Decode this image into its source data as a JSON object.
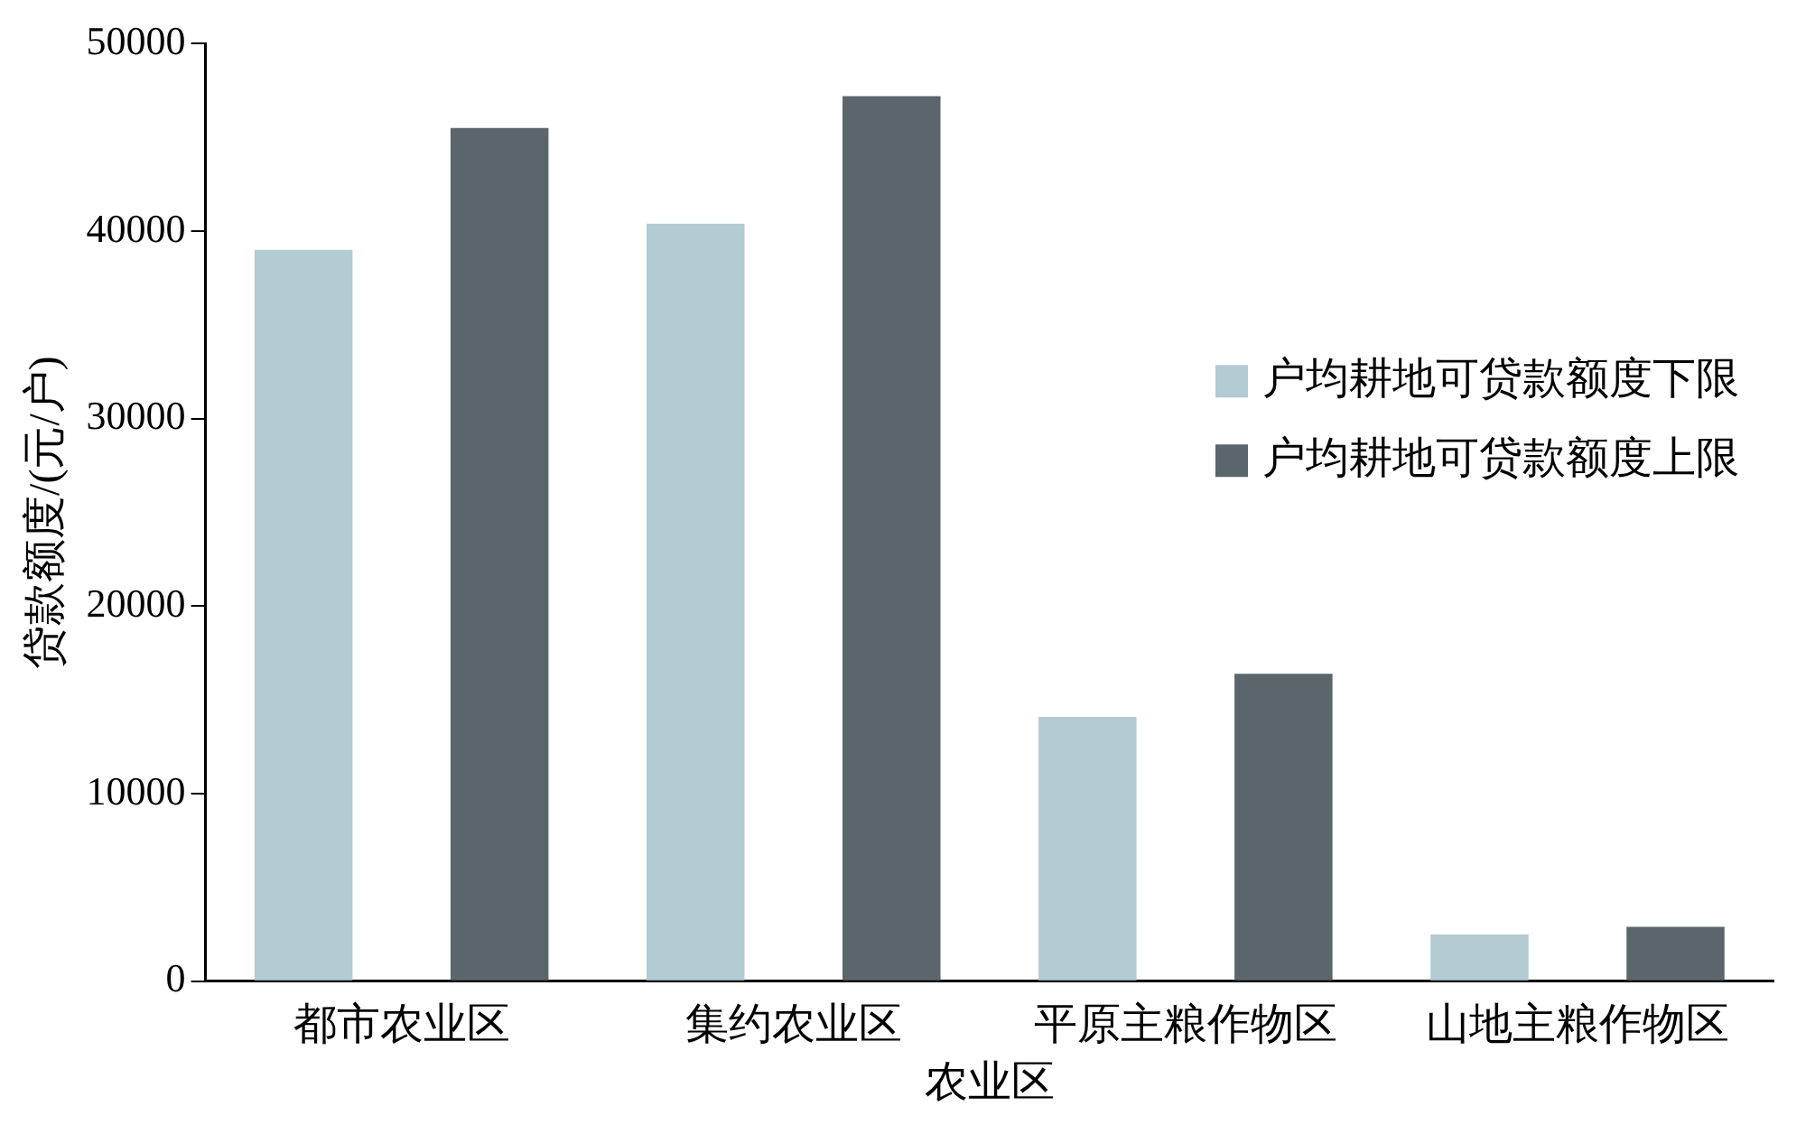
{
  "chart_data": {
    "type": "bar",
    "xlabel": "农业区",
    "ylabel": "贷款额度/(元/户)",
    "categories": [
      "都市农业区",
      "集约农业区",
      "平原主粮作物区",
      "山地主粮作物区"
    ],
    "series": [
      {
        "name": "户均耕地可贷款额度下限",
        "color": "#b3cbd2",
        "values": [
          39000,
          40400,
          14100,
          2500
        ]
      },
      {
        "name": "户均耕地可贷款额度上限",
        "color": "#5b666c",
        "values": [
          45500,
          47200,
          16400,
          2900
        ]
      }
    ],
    "ylim": [
      0,
      50000
    ],
    "yticks": [
      0,
      10000,
      20000,
      30000,
      40000,
      50000
    ],
    "grid": false,
    "legend": "right"
  }
}
